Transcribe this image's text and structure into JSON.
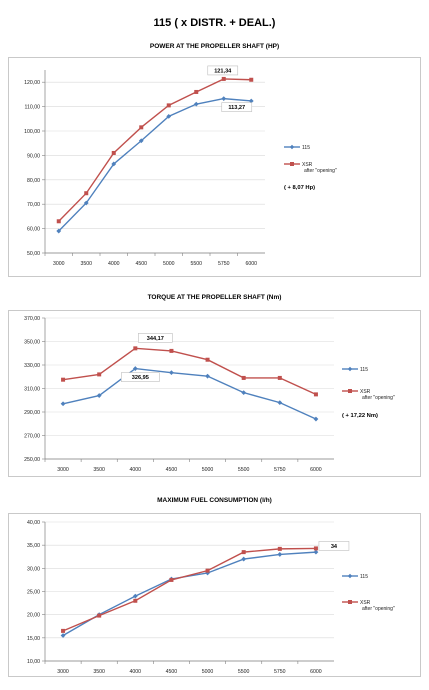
{
  "page": {
    "title": "115 ( x DISTR. + DEAL.)"
  },
  "colors": {
    "series_115": "#4f81bd",
    "series_xsr": "#c0504d",
    "axis": "#808080",
    "grid": "#d9d9d9"
  },
  "chart_data": [
    {
      "type": "line",
      "title": "POWER AT THE PROPELLER SHAFT (HP)",
      "categories": [
        "3000",
        "3500",
        "4000",
        "4500",
        "5000",
        "5500",
        "5750",
        "6000"
      ],
      "y_ticks": [
        "50,00",
        "60,00",
        "70,00",
        "80,00",
        "90,00",
        "100,00",
        "110,00",
        "120,00"
      ],
      "ylim": [
        50,
        125
      ],
      "series": [
        {
          "name": "115",
          "values": [
            59.0,
            70.5,
            86.5,
            96.0,
            106.0,
            111.0,
            113.27,
            112.3
          ]
        },
        {
          "name": "XSR after \"opening\"",
          "values": [
            63.0,
            74.5,
            91.0,
            101.5,
            110.5,
            116.0,
            121.34,
            121.0
          ]
        }
      ],
      "annotations": [
        {
          "text": "121,34",
          "series": 1,
          "index": 6
        },
        {
          "text": "113,27",
          "series": 0,
          "index": 6
        }
      ],
      "note": "( + 8,07 Hp)",
      "legend": "right",
      "grid": true
    },
    {
      "type": "line",
      "title": "TORQUE AT THE PROPELLER SHAFT (Nm)",
      "categories": [
        "3000",
        "3500",
        "4000",
        "4500",
        "5000",
        "5500",
        "5750",
        "6000"
      ],
      "y_ticks": [
        "250,00",
        "270,00",
        "290,00",
        "310,00",
        "330,00",
        "350,00",
        "370,00"
      ],
      "ylim": [
        250,
        370
      ],
      "series": [
        {
          "name": "115",
          "values": [
            297.0,
            304.0,
            326.95,
            323.5,
            320.5,
            306.5,
            298.0,
            284.0
          ]
        },
        {
          "name": "XSR after \"opening\"",
          "values": [
            317.5,
            322.0,
            344.17,
            342.0,
            334.5,
            319.0,
            319.0,
            305.0
          ]
        }
      ],
      "annotations": [
        {
          "text": "344,17",
          "series": 1,
          "index": 2
        },
        {
          "text": "326,95",
          "series": 0,
          "index": 2
        }
      ],
      "note": "( + 17,22 Nm)",
      "legend": "right",
      "grid": true
    },
    {
      "type": "line",
      "title": "MAXIMUM FUEL CONSUMPTION (l/h)",
      "categories": [
        "3000",
        "3500",
        "4000",
        "4500",
        "5000",
        "5500",
        "5750",
        "6000"
      ],
      "y_ticks": [
        "10,00",
        "15,00",
        "20,00",
        "25,00",
        "30,00",
        "35,00",
        "40,00"
      ],
      "ylim": [
        10,
        40
      ],
      "series": [
        {
          "name": "115",
          "values": [
            15.5,
            20.0,
            24.0,
            27.7,
            29.0,
            32.0,
            33.0,
            33.5
          ]
        },
        {
          "name": "XSR after \"opening\"",
          "values": [
            16.5,
            19.8,
            23.0,
            27.5,
            29.5,
            33.5,
            34.2,
            34.3
          ]
        }
      ],
      "annotations": [
        {
          "text": "34",
          "series": 1,
          "index": 7
        }
      ],
      "note": "",
      "legend": "right",
      "grid": true
    }
  ]
}
